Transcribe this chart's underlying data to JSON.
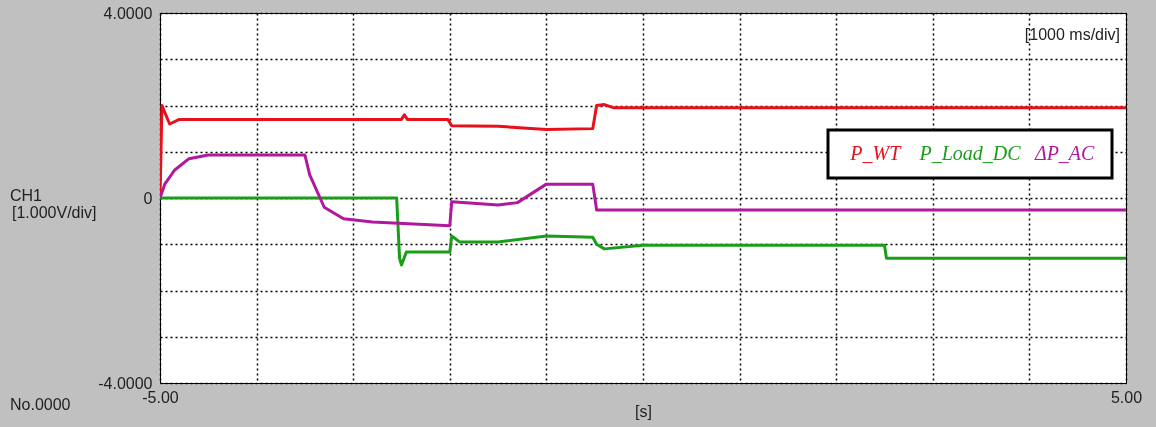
{
  "chart_data": {
    "type": "line",
    "xlabel": "[s]",
    "xlim": [
      -5,
      5
    ],
    "xticks": [
      {
        "value": -5,
        "label": "-5.00"
      },
      {
        "value": -4,
        "label": null
      },
      {
        "value": -3,
        "label": null
      },
      {
        "value": -2,
        "label": null
      },
      {
        "value": -1,
        "label": null
      },
      {
        "value": 0,
        "label": null
      },
      {
        "value": 1,
        "label": null
      },
      {
        "value": 2,
        "label": null
      },
      {
        "value": 3,
        "label": null
      },
      {
        "value": 4,
        "label": null
      },
      {
        "value": 5,
        "label": "5.00"
      }
    ],
    "ylim": [
      -4,
      4
    ],
    "yticks": [
      {
        "value": -4,
        "label": "-4.0000"
      },
      {
        "value": -3,
        "label": null
      },
      {
        "value": -2,
        "label": null
      },
      {
        "value": -1,
        "label": null
      },
      {
        "value": 0,
        "label": "0"
      },
      {
        "value": 1,
        "label": null
      },
      {
        "value": 2,
        "label": null
      },
      {
        "value": 3,
        "label": null
      },
      {
        "value": 4,
        "label": "4.0000"
      }
    ],
    "grid": true,
    "legend": "top right",
    "line_style": "solid",
    "annotations": [
      "CH1",
      "[1.000V/div]",
      "No.0000",
      "[1000 ms/div]"
    ],
    "series": [
      {
        "name": "P_WT",
        "color": "#e8101a",
        "x": [
          -5,
          -4.98,
          -4.9,
          -4.8,
          -3,
          -2.5,
          -2.47,
          -2.44,
          -2.02,
          -1.98,
          -1.5,
          -1.0,
          -0.52,
          -0.48,
          -0.4,
          -0.3,
          1,
          3,
          5
        ],
        "values": [
          0,
          2.0,
          1.6,
          1.7,
          1.7,
          1.7,
          1.8,
          1.7,
          1.7,
          1.56,
          1.55,
          1.48,
          1.5,
          2.0,
          2.02,
          1.95,
          1.95,
          1.95,
          1.95
        ]
      },
      {
        "name": "P_Load_DC",
        "color": "#1a9e1a",
        "x": [
          -5,
          -2.55,
          -2.52,
          -2.5,
          -2.45,
          -2.0,
          -1.98,
          -1.9,
          -1.5,
          -1.0,
          -0.52,
          -0.48,
          -0.4,
          0,
          2.5,
          2.52,
          5
        ],
        "values": [
          0,
          0,
          -1.3,
          -1.45,
          -1.17,
          -1.17,
          -0.82,
          -0.95,
          -0.95,
          -0.82,
          -0.85,
          -1.0,
          -1.1,
          -1.02,
          -1.02,
          -1.3,
          -1.3
        ]
      },
      {
        "name": "ΔP_AC",
        "color": "#b0189e",
        "x": [
          -5,
          -4.95,
          -4.85,
          -4.7,
          -4.5,
          -3.5,
          -3.45,
          -3.3,
          -3.1,
          -2.8,
          -2.0,
          -1.98,
          -1.5,
          -1.3,
          -1.0,
          -0.52,
          -0.48,
          5
        ],
        "values": [
          0,
          0.3,
          0.6,
          0.85,
          0.93,
          0.93,
          0.5,
          -0.2,
          -0.45,
          -0.52,
          -0.6,
          -0.08,
          -0.15,
          -0.1,
          0.3,
          0.3,
          -0.26,
          -0.26
        ]
      }
    ]
  }
}
